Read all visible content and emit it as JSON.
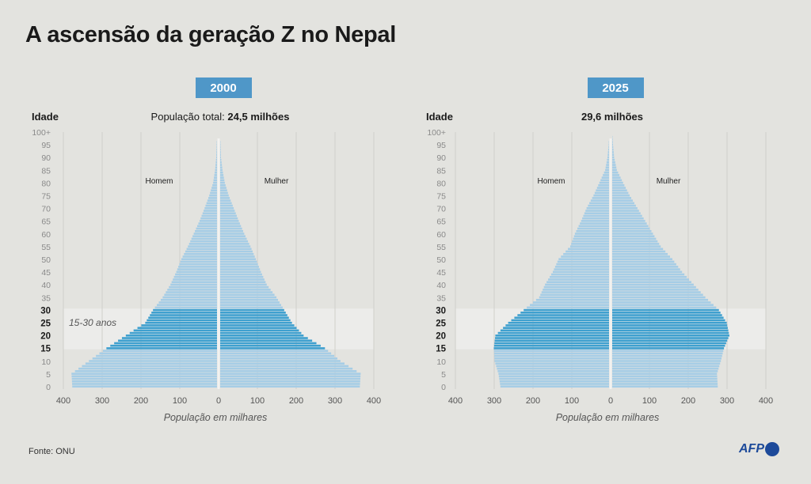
{
  "title": "A ascensão da geração Z no Nepal",
  "source": "Fonte: ONU",
  "logo": "AFP",
  "colors": {
    "bar": "#a6cde6",
    "bar_highlight": "#3fa0cf",
    "band": "#ececea",
    "pill": "#4f97c8",
    "grid": "#cfcfcb"
  },
  "chart_data": [
    {
      "type": "bar",
      "subtype": "population-pyramid",
      "year_label": "2000",
      "age_label": "Idade",
      "total_prefix": "População total: ",
      "total_value": "24,5 milhões",
      "xlabel": "População em milhares",
      "left_label": "Homem",
      "right_label": "Mulher",
      "band_label": "15-30 anos",
      "highlight_range": [
        15,
        30
      ],
      "xlim": [
        0,
        400
      ],
      "x_ticks": [
        "400",
        "300",
        "200",
        "100",
        "0",
        "100",
        "200",
        "300",
        "400"
      ],
      "y_ticks": [
        "0",
        "5",
        "10",
        "15",
        "20",
        "25",
        "30",
        "35",
        "40",
        "45",
        "50",
        "55",
        "60",
        "65",
        "70",
        "75",
        "80",
        "85",
        "90",
        "95",
        "100+"
      ],
      "age_knots": [
        0,
        5,
        10,
        15,
        20,
        25,
        30,
        35,
        40,
        45,
        50,
        55,
        60,
        65,
        70,
        75,
        80,
        85,
        90,
        95,
        100
      ],
      "series": [
        {
          "name": "Homem",
          "values": [
            373,
            375,
            330,
            285,
            235,
            185,
            165,
            140,
            120,
            105,
            92,
            75,
            60,
            45,
            32,
            20,
            10,
            5,
            2,
            1,
            0
          ]
        },
        {
          "name": "Mulher",
          "values": [
            360,
            362,
            310,
            270,
            215,
            185,
            165,
            145,
            120,
            105,
            92,
            78,
            62,
            48,
            35,
            22,
            12,
            6,
            2,
            1,
            0
          ]
        }
      ]
    },
    {
      "type": "bar",
      "subtype": "population-pyramid",
      "year_label": "2025",
      "age_label": "Idade",
      "total_prefix": "",
      "total_value": "29,6 milhões",
      "xlabel": "População em milhares",
      "left_label": "Homem",
      "right_label": "Mulher",
      "highlight_range": [
        15,
        30
      ],
      "xlim": [
        0,
        400
      ],
      "x_ticks": [
        "400",
        "300",
        "200",
        "100",
        "0",
        "100",
        "200",
        "300",
        "400"
      ],
      "y_ticks": [
        "0",
        "5",
        "10",
        "15",
        "20",
        "25",
        "30",
        "35",
        "40",
        "45",
        "50",
        "55",
        "60",
        "65",
        "70",
        "75",
        "80",
        "85",
        "90",
        "95",
        "100+"
      ],
      "age_knots": [
        0,
        5,
        10,
        15,
        20,
        25,
        30,
        35,
        40,
        45,
        50,
        55,
        60,
        65,
        70,
        75,
        80,
        85,
        90,
        95,
        100
      ],
      "series": [
        {
          "name": "Homem",
          "values": [
            280,
            285,
            295,
            297,
            293,
            260,
            220,
            180,
            165,
            145,
            130,
            100,
            88,
            72,
            58,
            40,
            25,
            10,
            4,
            1,
            0
          ]
        },
        {
          "name": "Mulher",
          "values": [
            272,
            270,
            280,
            288,
            302,
            295,
            275,
            240,
            210,
            180,
            155,
            125,
            105,
            85,
            65,
            45,
            28,
            12,
            5,
            2,
            0
          ]
        }
      ]
    }
  ]
}
